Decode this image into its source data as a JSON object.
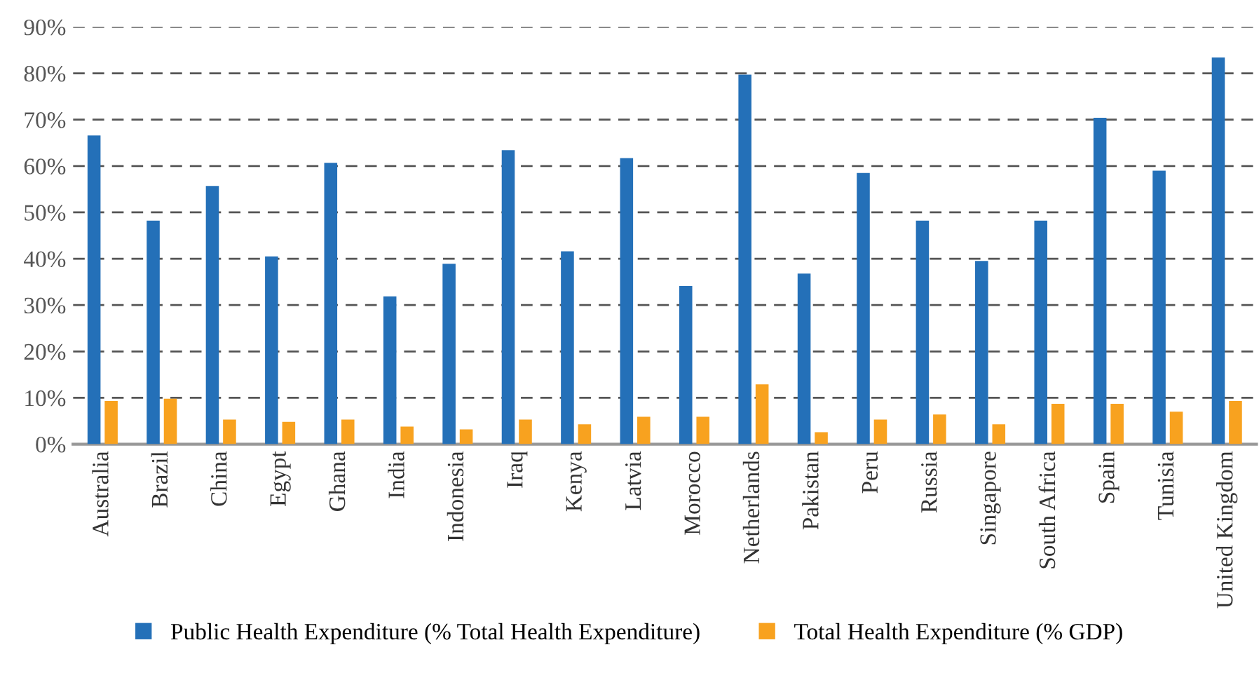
{
  "chart_data": {
    "type": "bar",
    "categories": [
      "Australia",
      "Brazil",
      "China",
      "Egypt",
      "Ghana",
      "India",
      "Indonesia",
      "Iraq",
      "Kenya",
      "Latvia",
      "Morocco",
      "Netherlands",
      "Pakistan",
      "Peru",
      "Russia",
      "Singapore",
      "South Africa",
      "Spain",
      "Tunisia",
      "United Kingdom"
    ],
    "series": [
      {
        "name": "Public Health Expenditure (% Total Health Expenditure)",
        "color": "#2470b8",
        "values": [
          66.6,
          48.2,
          55.7,
          40.5,
          60.7,
          31.9,
          38.9,
          63.4,
          41.6,
          61.7,
          34.1,
          79.7,
          36.8,
          58.5,
          48.2,
          39.5,
          48.2,
          70.4,
          59.0,
          83.4
        ]
      },
      {
        "name": "Total Health Expenditure (% GDP)",
        "color": "#f8a21f",
        "values": [
          9.3,
          9.8,
          5.3,
          4.8,
          5.3,
          3.8,
          3.2,
          5.3,
          4.3,
          5.9,
          5.9,
          12.9,
          2.6,
          5.3,
          6.4,
          4.3,
          8.7,
          8.7,
          7.0,
          9.3
        ]
      }
    ],
    "ylim": [
      0,
      90
    ],
    "yticks": [
      {
        "value": 0,
        "label": "0%"
      },
      {
        "value": 10,
        "label": "10%"
      },
      {
        "value": 20,
        "label": "20%"
      },
      {
        "value": 30,
        "label": "30%"
      },
      {
        "value": 40,
        "label": "40%"
      },
      {
        "value": 50,
        "label": "50%"
      },
      {
        "value": 60,
        "label": "60%"
      },
      {
        "value": 70,
        "label": "70%"
      },
      {
        "value": 80,
        "label": "80%"
      },
      {
        "value": 90,
        "label": "90%"
      }
    ],
    "grid": "y",
    "legend": "bottom"
  }
}
